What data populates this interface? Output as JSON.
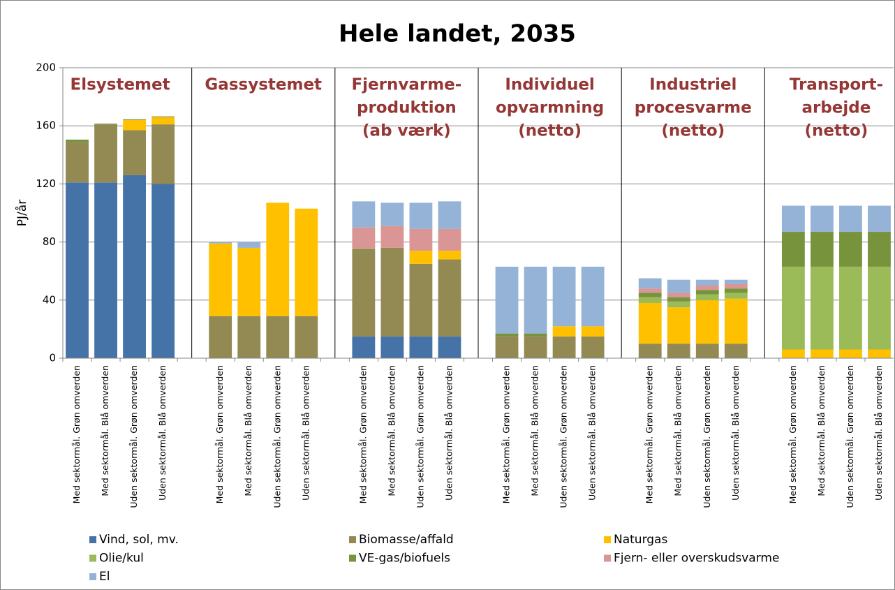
{
  "chart_data": {
    "type": "stacked_bar",
    "title": "Hele landet, 2035",
    "y_label": "PJ/år",
    "ylim": [
      0,
      200
    ],
    "yticks": [
      0,
      40,
      80,
      120,
      160,
      200
    ],
    "grid": true,
    "legend": "bottom",
    "group_labels": [
      [
        "Elsystemet"
      ],
      [
        "Gassystemet"
      ],
      [
        "Fjernvarme-",
        "produktion",
        "(ab værk)"
      ],
      [
        "Individuel",
        "opvarmning",
        "(netto)"
      ],
      [
        "Industriel",
        "procesvarme",
        "(netto)"
      ],
      [
        "Transport-",
        "arbejde",
        "(netto)"
      ]
    ],
    "group_label_color": "#953735",
    "categories": [
      "Med sektormål. Grøn omverden",
      "Med sektormål. Blå omverden",
      "Uden sektormål. Grøn omverden",
      "Uden sektormål. Blå omverden",
      null,
      "Med sektormål. Grøn omverden",
      "Med sektormål. Blå omverden",
      "Uden sektormål. Grøn omverden",
      "Uden sektormål. Blå omverden",
      null,
      "Med sektormål. Grøn omverden",
      "Med sektormål. Blå omverden",
      "Uden sektormål. Grøn omverden",
      "Uden sektormål. Blå omverden",
      null,
      "Med sektormål. Grøn omverden",
      "Med sektormål. Blå omverden",
      "Uden sektormål. Grøn omverden",
      "Uden sektormål. Blå omverden",
      null,
      "Med sektormål. Grøn omverden",
      "Med sektormål. Blå omverden",
      "Uden sektormål. Grøn omverden",
      "Uden sektormål. Blå omverden",
      null,
      "Med sektormål. Grøn omverden",
      "Med sektormål. Blå omverden",
      "Uden sektormål. Grøn omverden",
      "Uden sektormål. Blå omverden"
    ],
    "series": [
      {
        "name": "Vind, sol, mv.",
        "color": "#4572a7",
        "values": [
          121,
          121,
          126,
          120,
          null,
          0,
          0,
          0,
          0,
          null,
          15,
          15,
          15,
          15,
          null,
          0,
          0,
          0,
          0,
          null,
          0,
          0,
          0,
          0,
          null,
          0,
          0,
          0,
          0
        ]
      },
      {
        "name": "Biomasse/affald",
        "color": "#938953",
        "values": [
          28,
          40,
          31,
          41,
          null,
          29,
          29,
          29,
          29,
          null,
          59,
          61,
          50,
          53,
          null,
          15,
          15,
          15,
          15,
          null,
          10,
          10,
          10,
          10,
          null,
          0,
          0,
          0,
          0
        ]
      },
      {
        "name": "Naturgas",
        "color": "#ffc000",
        "values": [
          0,
          0,
          7,
          5,
          null,
          50,
          47,
          78,
          74,
          null,
          0,
          0,
          9,
          6,
          null,
          0,
          0,
          7,
          7,
          null,
          28,
          25,
          30,
          31,
          null,
          6,
          6,
          6,
          6
        ]
      },
      {
        "name": "Olie/kul",
        "color": "#9bbb59",
        "values": [
          0,
          0,
          0,
          0,
          null,
          0,
          0,
          0,
          0,
          null,
          0,
          0,
          0,
          0,
          null,
          0,
          0,
          0,
          0,
          null,
          4,
          4,
          4,
          4,
          null,
          57,
          57,
          57,
          57
        ]
      },
      {
        "name": "VE-gas/biofuels",
        "color": "#77933c",
        "values": [
          1.5,
          0.5,
          0.5,
          0.5,
          null,
          0,
          0,
          0,
          0,
          null,
          1,
          0,
          0,
          0,
          null,
          2,
          2,
          0,
          0,
          null,
          3,
          3,
          3,
          3,
          null,
          24,
          24,
          24,
          24
        ]
      },
      {
        "name": "Fjern- eller overskudsvarme",
        "color": "#d99694",
        "values": [
          0,
          0,
          0,
          0,
          null,
          0,
          0,
          0,
          0,
          null,
          15,
          15,
          15,
          15,
          null,
          0,
          0,
          0,
          0,
          null,
          3,
          3,
          3,
          3,
          null,
          0,
          0,
          0,
          0
        ]
      },
      {
        "name": "El",
        "color": "#95b3d7",
        "values": [
          0,
          0,
          0,
          0,
          null,
          1,
          4,
          0,
          0,
          null,
          18,
          16,
          18,
          19,
          null,
          46,
          46,
          41,
          41,
          null,
          7,
          9,
          4,
          3,
          null,
          18,
          18,
          18,
          18
        ]
      }
    ]
  }
}
